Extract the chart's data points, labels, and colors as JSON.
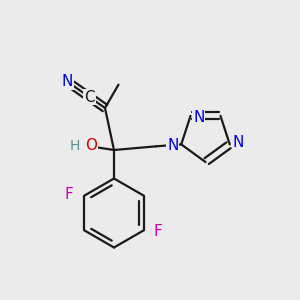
{
  "bg_color": "#ebebeb",
  "bond_color": "#1a1a1a",
  "bond_width": 1.6,
  "atom_colors": {
    "N": "#0000dd",
    "O": "#dd0000",
    "F": "#cc00bb",
    "C": "#1a1a1a",
    "H": "#5a9090"
  },
  "fontsize": 11
}
